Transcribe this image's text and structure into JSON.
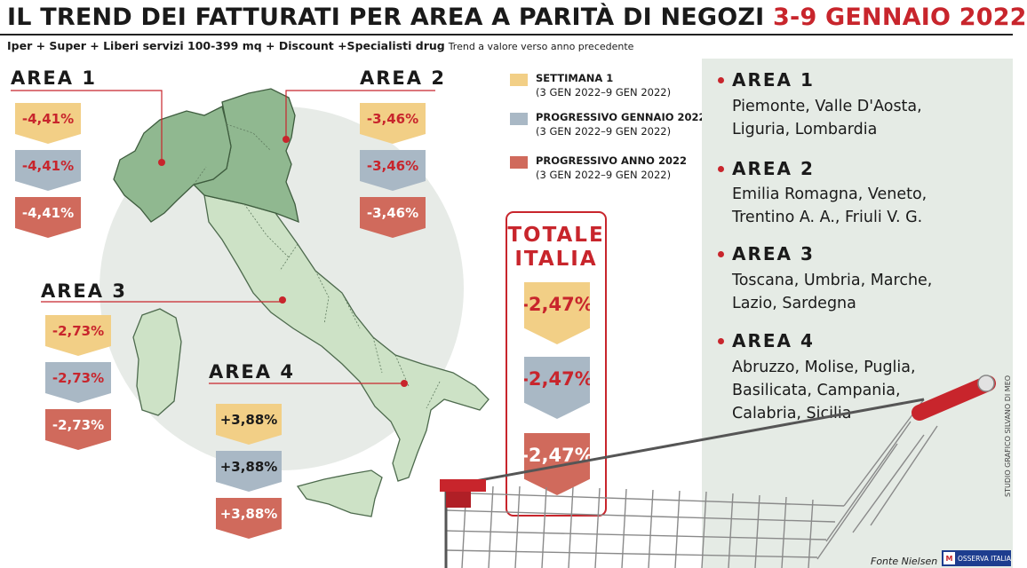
{
  "header": {
    "title": "IL TREND DEI FATTURATI PER AREA A PARITÀ DI NEGOZI",
    "title_accent": "3-9 GENNAIO 2022",
    "subtitle": "Iper + Super + Liberi servizi 100-399 mq + Discount +Specialisti drug",
    "subtitle_note": "Trend a valore verso anno precedente"
  },
  "legend": [
    {
      "label": "SETTIMANA 1",
      "range": "(3 GEN 2022–9 GEN 2022)",
      "color": "#f2cf86"
    },
    {
      "label": "PROGRESSIVO GENNAIO 2022",
      "range": "(3 GEN 2022–9 GEN 2022)",
      "color": "#a9b8c5"
    },
    {
      "label": "PROGRESSIVO ANNO 2022",
      "range": "(3 GEN 2022–9 GEN 2022)",
      "color": "#d06a5c"
    }
  ],
  "chart_data": {
    "type": "table",
    "title": "IL TREND DEI FATTURATI PER AREA A PARITÀ DI NEGOZI 3-9 GENNAIO 2022",
    "subtitle": "Iper + Super + Liberi servizi 100-399 mq + Discount +Specialisti drug",
    "categories": [
      "AREA 1",
      "AREA 2",
      "AREA 3",
      "AREA 4",
      "TOTALE ITALIA"
    ],
    "series": [
      {
        "name": "SETTIMANA 1",
        "values": [
          -4.41,
          -3.46,
          -2.73,
          3.88,
          -2.47
        ]
      },
      {
        "name": "PROGRESSIVO GENNAIO 2022",
        "values": [
          -4.41,
          -3.46,
          -2.73,
          3.88,
          -2.47
        ]
      },
      {
        "name": "PROGRESSIVO ANNO 2022",
        "values": [
          -4.41,
          -3.46,
          -2.73,
          3.88,
          -2.47
        ]
      }
    ]
  },
  "areas": [
    {
      "name": "AREA 1",
      "values": [
        "-4,41%",
        "-4,41%",
        "-4,41%"
      ],
      "regions": [
        "Piemonte, Valle D'Aosta,",
        "Liguria, Lombardia"
      ]
    },
    {
      "name": "AREA 2",
      "values": [
        "-3,46%",
        "-3,46%",
        "-3,46%"
      ],
      "regions": [
        "Emilia Romagna, Veneto,",
        "Trentino A. A., Friuli V. G."
      ]
    },
    {
      "name": "AREA 3",
      "values": [
        "-2,73%",
        "-2,73%",
        "-2,73%"
      ],
      "regions": [
        "Toscana, Umbria, Marche,",
        "Lazio, Sardegna"
      ]
    },
    {
      "name": "AREA 4",
      "values": [
        "+3,88%",
        "+3,88%",
        "+3,88%"
      ],
      "regions": [
        "Abruzzo, Molise, Puglia,",
        "Basilicata, Campania,",
        "Calabria, Sicilia"
      ]
    }
  ],
  "total": {
    "title_line1": "TOTALE",
    "title_line2": "ITALIA",
    "values": [
      "-2,47%",
      "-2,47%",
      "-2,47%"
    ]
  },
  "colors": {
    "accent": "#c8252c",
    "map_north": "#90b890",
    "map_south": "#cde2c6",
    "panel": "#e5ebe5"
  },
  "footer": {
    "credit": "STUDIO GRAFICO SILVANO DI MEO",
    "source": "Fonte Nielsen",
    "logo_mark": "M",
    "logo_text": "OSSERVA ITALIA"
  }
}
